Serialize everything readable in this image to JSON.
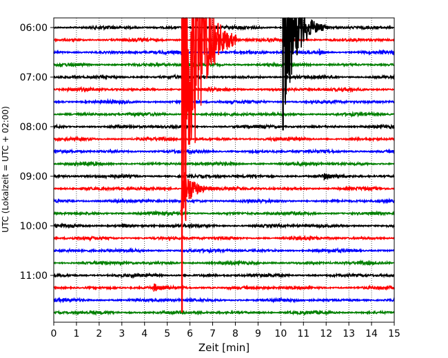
{
  "chart_data": {
    "type": "line",
    "title": "",
    "xlabel": "Zeit  [min]",
    "ylabel": "UTC (Lokalzeit = UTC + 02:00)",
    "xlim": [
      0,
      15
    ],
    "x_ticks": [
      "0",
      "1",
      "2",
      "3",
      "4",
      "5",
      "6",
      "7",
      "8",
      "9",
      "10",
      "11",
      "12",
      "13",
      "14",
      "15"
    ],
    "y_ticks": [
      "06:00",
      "07:00",
      "08:00",
      "09:00",
      "10:00",
      "11:00"
    ],
    "grid": "vertical dotted",
    "trace_interval_min": 15,
    "trace_start": "06:00",
    "trace_count": 24,
    "color_cycle": [
      "#000000",
      "#ff0000",
      "#0000ff",
      "#008000"
    ],
    "events": [
      {
        "trace": 0,
        "start_min": 10.1,
        "amplitude_traces": 8.3,
        "decay_min": 0.5,
        "color": "#000000",
        "spike": true
      },
      {
        "trace": 1,
        "start_min": 5.65,
        "amplitude_traces": 22,
        "decay_min": 0.6,
        "color": "#ff0000",
        "spike": true
      },
      {
        "trace": 13,
        "start_min": 5.6,
        "amplitude_traces": 2.4,
        "decay_min": 0.45,
        "color": "#ff0000",
        "spike": false
      },
      {
        "trace": 21,
        "start_min": 4.4,
        "amplitude_traces": 0.4,
        "decay_min": 0.3,
        "color": "#ff0000",
        "spike": false
      },
      {
        "trace": 12,
        "start_min": 11.9,
        "amplitude_traces": 0.35,
        "decay_min": 0.3,
        "color": "#000000",
        "spike": false
      },
      {
        "trace": 16,
        "start_min": 3.0,
        "amplitude_traces": 0.3,
        "decay_min": 0.2,
        "color": "#000000",
        "spike": false
      },
      {
        "trace": 2,
        "start_min": 11.7,
        "amplitude_traces": 0.3,
        "decay_min": 0.2,
        "color": "#0000ff",
        "spike": false
      }
    ]
  }
}
